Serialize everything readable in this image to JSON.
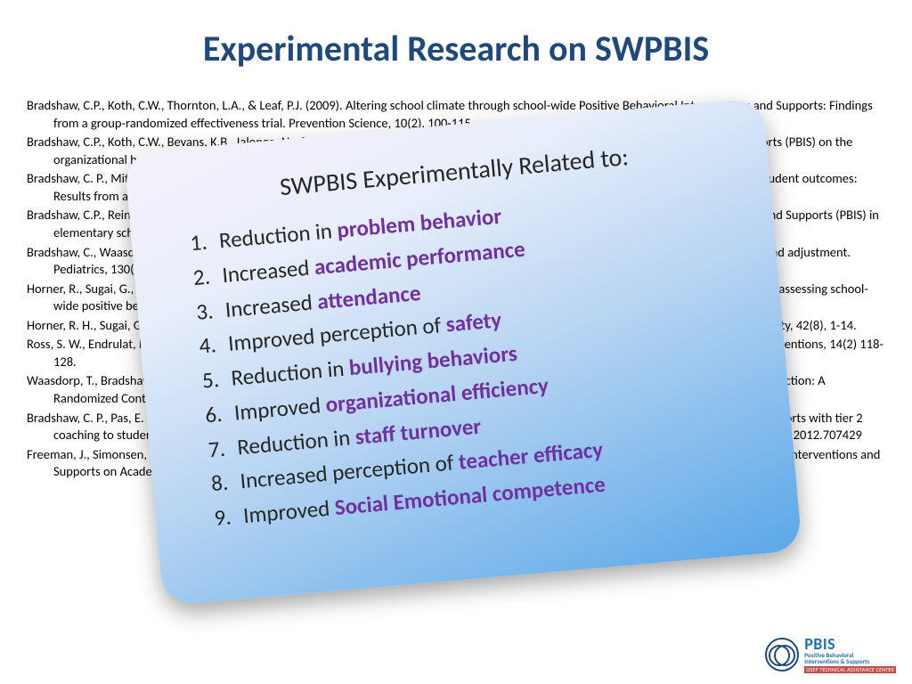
{
  "colors": {
    "title_color": "#1f497d",
    "body_text": "#000000",
    "highlight": "#7030a0",
    "callout_gradient_start": "#f6f0fb",
    "callout_gradient_mid1": "#e8eefb",
    "callout_gradient_mid2": "#b6d4f2",
    "callout_gradient_end": "#5aa7e8",
    "logo_blue": "#1f6fb5",
    "logo_red": "#c0504d",
    "background": "#ffffff"
  },
  "title": "Experimental Research on SWPBIS",
  "references": [
    "Bradshaw, C.P., Koth, C.W., Thornton, L.A., & Leaf, P.J. (2009). Altering school climate through school-wide Positive Behavioral Interventions and Supports: Findings from a group-randomized effectiveness trial. Prevention Science, 10(2), 100-115",
    "Bradshaw, C.P., Koth, C.W., Bevans, K.B., Ialongo, N., & Leaf, P.J. (2008). The impact of school-wide Positive Behavioral Interventions and Supports (PBIS) on the organizational health of elementary schools. School Psychology Quarterly, 23(4), 462-473.",
    "Bradshaw, C. P., Mitchell, M. M., & Leaf, P. J. (2010). Examining the effects of School-Wide Positive Behavioral Interventions and Supports on student outcomes: Results from a randomized controlled effectiveness trial in elementary schools. Journal of Positive Behavior Interventions, 12, 133-148.",
    "Bradshaw, C.P., Reinke, W. M., Brown, L. D., Bevans, K.B., & Leaf, P.J. (2008). Implementation of school-wide Positive Behavioral Interventions and Supports (PBIS) in elementary schools: Observations from a randomized trial. Education & Treatment of Children, 31, 1-26.",
    "Bradshaw, C., Waasdorp, T., Leaf, P., (2012). Effects of School-wide positive behavioral interventions and supports on child behavior problems and adjustment. Pediatrics, 130(5) 1136-1145.",
    "Horner, R., Sugai, G., Smolkowski, K., Eber, L., Nakasato, J., Todd, A., & Esperanza, J., (2009). A randomized, wait-list controlled effectiveness trial assessing school-wide positive behavior support in elementary schools. Journal of Positive Behavior Interventions, 11, 133-145.",
    "Horner, R. H., Sugai, G., & Anderson, C. M. (2010). Examining the evidence base for school-wide positive behavior support. Focus on Exceptionality, 42(8), 1-14.",
    "Ross, S. W., Endrulat, N. R., & Horner, R. H. (2012). Adult outcomes of school-wide positive behavior support. Journal of Positive Behavioral Interventions, 14(2) 118-128.",
    "Waasdorp, T., Bradshaw, C., & Leaf, P., (2012). The Impact of Schoolwide Positive Behavioral Interventions and Supports on Bullying and Peer Rejection: A Randomized Controlled Effectiveness Trial. Archive of Pediatric Adolescent Medicine, 166(2), 149-156.",
    "Bradshaw, C. P., Pas, E. T., Goldweber, A., Rosenberg, M. S., & Leaf, P. J. (2012). Integrating school-wide positive behavioral interventions and Supports with tier 2 coaching to student support teams: The PBISplus model. Advances in School Mental Health Promotion, 5(3), 177-193. doi:10.1080/1754730x.2012.707429",
    "Freeman, J., Simonsen, B., McCoach D.B., Sugai, G., Lombardi, A., & Horner, ( submitted) Implementation Effects of School-wide Positive Behavior Interventions and Supports on Academic, Attendance, and Behavior Outcomes in High Schools."
  ],
  "callout": {
    "heading": "SWPBIS Experimentally Related to:",
    "items": [
      {
        "prefix": "Reduction in ",
        "highlight": "problem behavior"
      },
      {
        "prefix": "Increased ",
        "highlight": "academic performance"
      },
      {
        "prefix": "Increased ",
        "highlight": "attendance"
      },
      {
        "prefix": "Improved perception of ",
        "highlight": "safety"
      },
      {
        "prefix": "Reduction in ",
        "highlight": "bullying behaviors"
      },
      {
        "prefix": "Improved ",
        "highlight": "organizational efficiency"
      },
      {
        "prefix": "Reduction in ",
        "highlight": "staff turnover"
      },
      {
        "prefix": "Increased perception of ",
        "highlight": "teacher efficacy"
      },
      {
        "prefix": "Improved ",
        "highlight": "Social Emotional competence"
      }
    ]
  },
  "logo": {
    "main": "PBIS",
    "sub1": "Positive Behavioral",
    "sub2": "Interventions & Supports",
    "bar": "OSEP TECHNICAL ASSISTANCE CENTER"
  },
  "layout": {
    "slide_width": 1024,
    "slide_height": 768,
    "callout_rotation_deg": -5,
    "callout_border_radius": 35,
    "title_fontsize": 40,
    "ref_fontsize": 14.5,
    "callout_heading_fontsize": 28,
    "callout_item_fontsize": 25
  }
}
